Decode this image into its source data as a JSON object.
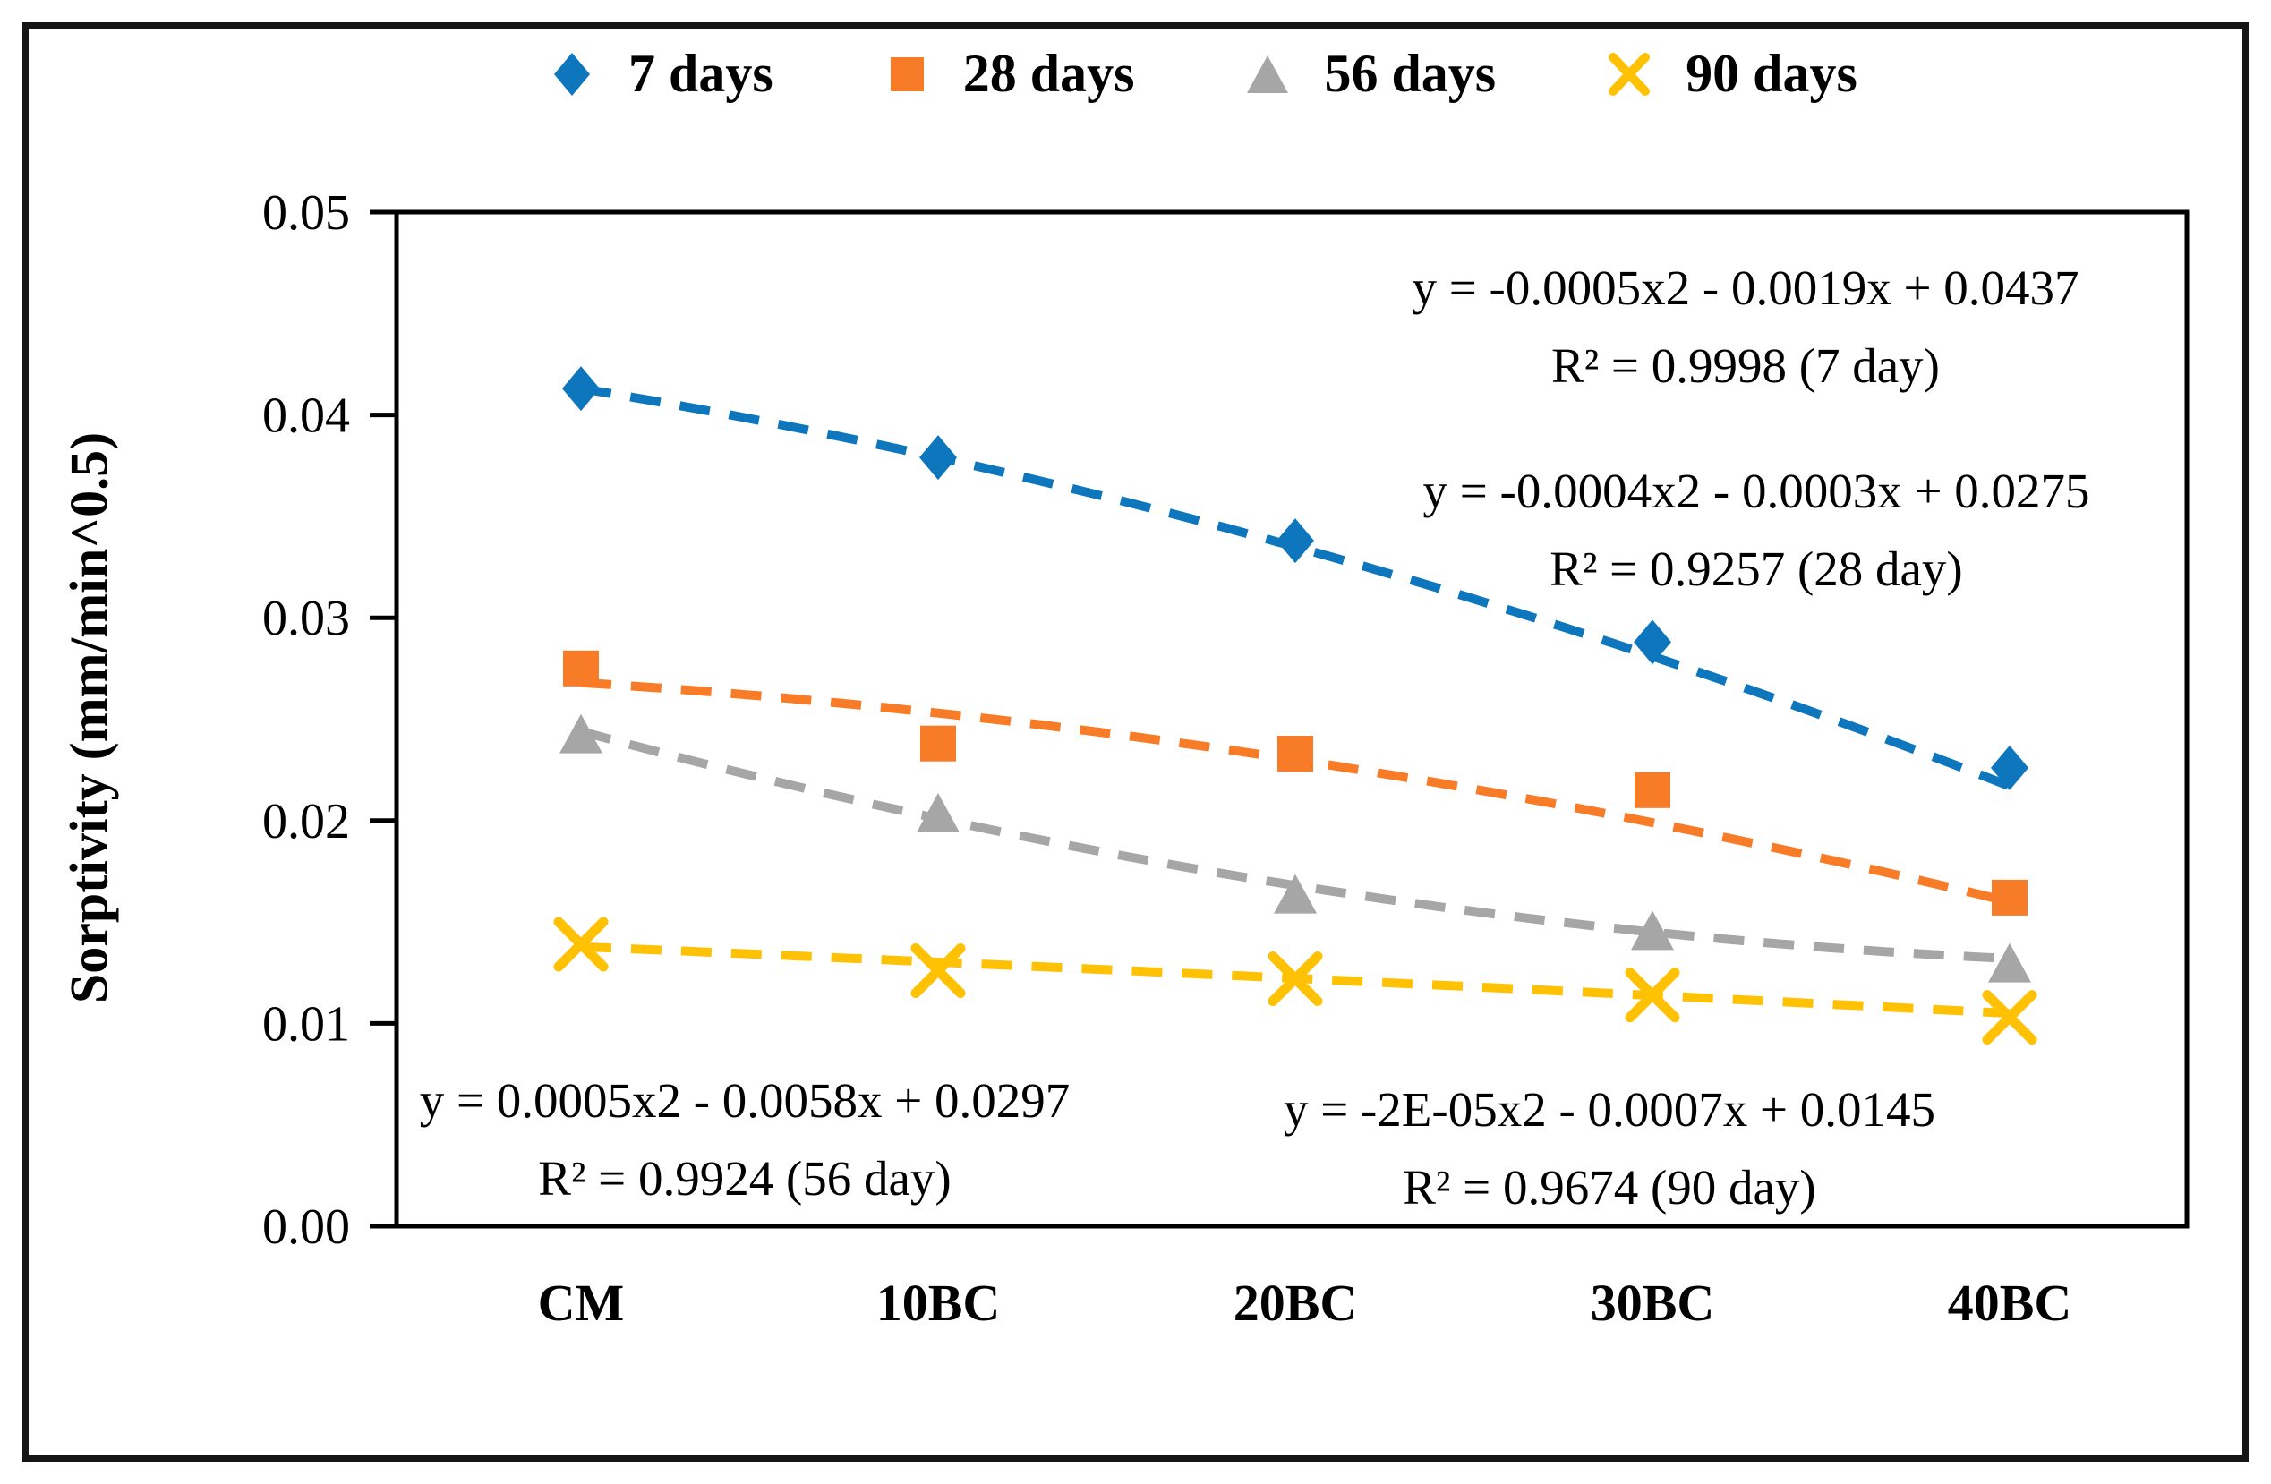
{
  "chart_data": {
    "type": "scatter",
    "title": "",
    "xlabel": "",
    "ylabel": "Sorptivity (mm/min^0.5)",
    "categories": [
      "CM",
      "10BC",
      "20BC",
      "30BC",
      "40BC"
    ],
    "x": [
      1,
      2,
      3,
      4,
      5
    ],
    "ylim": [
      0,
      0.05
    ],
    "y_ticks": [
      "0.00",
      "0.01",
      "0.02",
      "0.03",
      "0.04",
      "0.05"
    ],
    "grid": false,
    "legend_position": "top",
    "series": [
      {
        "name": "7 days",
        "marker": "diamond",
        "color": "#0D76BC",
        "values": [
          0.0413,
          0.0379,
          0.0338,
          0.0288,
          0.0226
        ],
        "trendline": {
          "type": "poly2",
          "a": -0.0005,
          "b": -0.0019,
          "c": 0.0437,
          "equation": "y = -0.0005x2 - 0.0019x + 0.0437",
          "r2": "R² = 0.9998  (7 day)"
        }
      },
      {
        "name": "28 days",
        "marker": "square",
        "color": "#F87C28",
        "values": [
          0.0275,
          0.0238,
          0.0233,
          0.0215,
          0.0162
        ],
        "trendline": {
          "type": "poly2",
          "a": -0.0004,
          "b": -0.0003,
          "c": 0.0275,
          "equation": "y = -0.0004x2 - 0.0003x + 0.0275",
          "r2": "R² = 0.9257  (28 day)"
        }
      },
      {
        "name": "56 days",
        "marker": "triangle",
        "color": "#A6A6A6",
        "values": [
          0.0242,
          0.0203,
          0.0163,
          0.0145,
          0.0129
        ],
        "trendline": {
          "type": "poly2",
          "a": 0.0005,
          "b": -0.0058,
          "c": 0.0297,
          "equation": "y = 0.0005x2 - 0.0058x + 0.0297",
          "r2": "R² = 0.9924  (56 day)"
        }
      },
      {
        "name": "90 days",
        "marker": "x",
        "color": "#FFC103",
        "values": [
          0.0139,
          0.0126,
          0.0122,
          0.0114,
          0.0103
        ],
        "trendline": {
          "type": "poly2",
          "a": -2e-05,
          "b": -0.0007,
          "c": 0.0145,
          "equation": "y = -2E-05x2 - 0.0007x + 0.0145",
          "r2": "R² = 0.9674  (90 day)"
        }
      }
    ]
  }
}
